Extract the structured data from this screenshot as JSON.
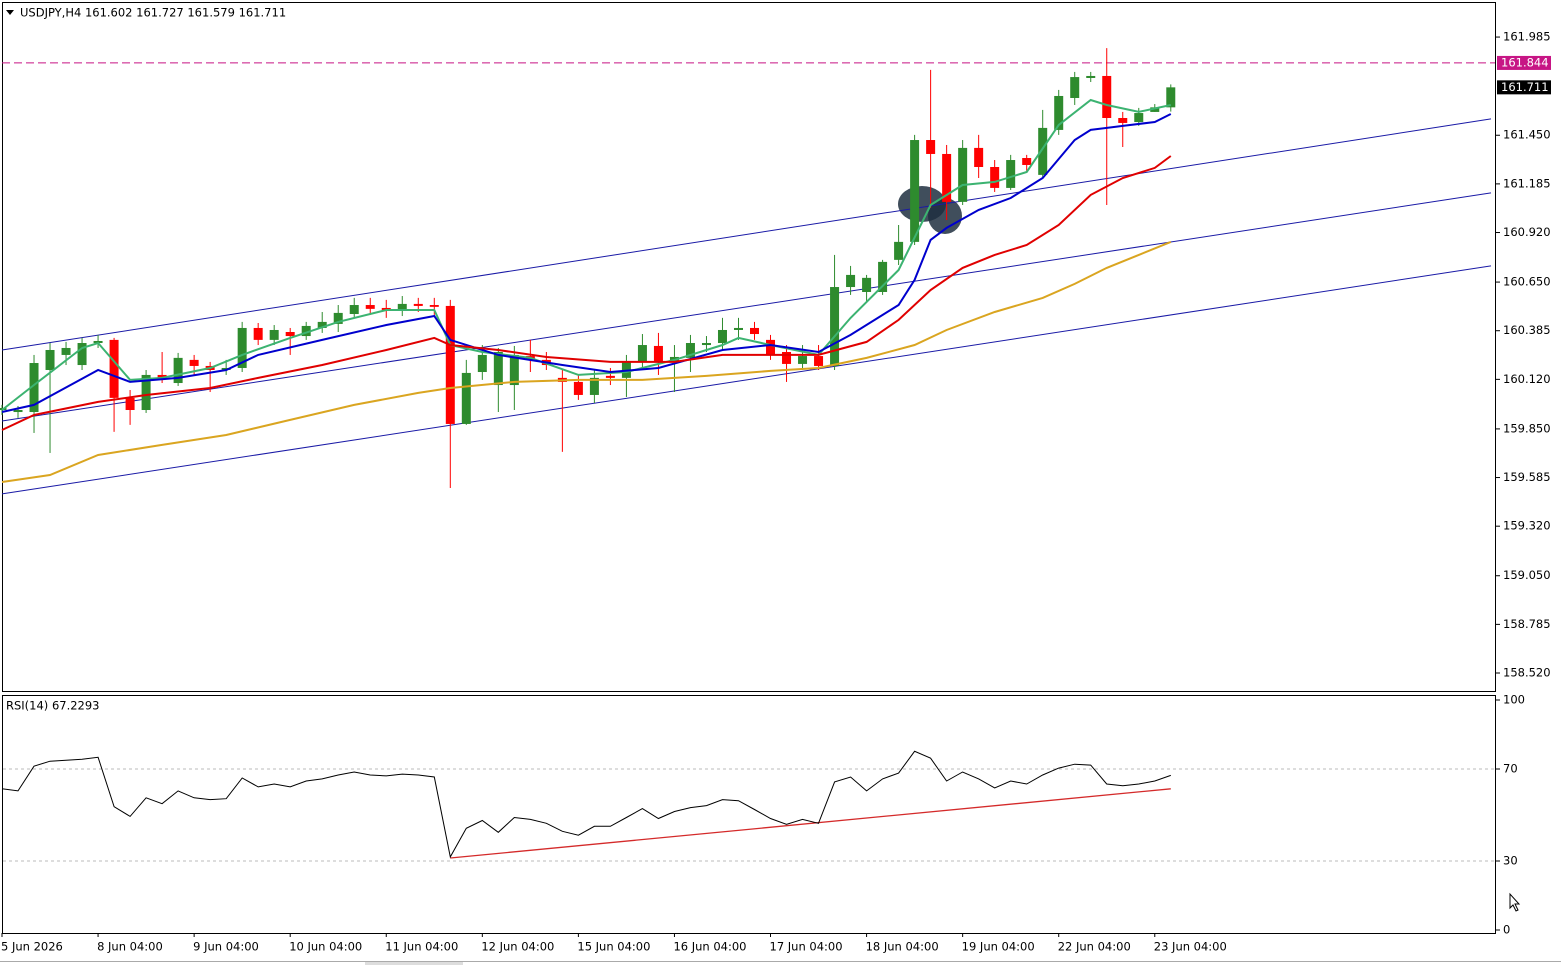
{
  "chart_data": [
    {
      "type": "candlestick",
      "title": "USDJPY,H4  161.602 161.727 161.579 161.711",
      "categories": [
        "5 Jun 2026",
        null,
        null,
        null,
        null,
        null,
        "8 Jun 04:00",
        null,
        null,
        null,
        null,
        null,
        "9 Jun 04:00",
        null,
        null,
        null,
        null,
        null,
        "10 Jun 04:00",
        null,
        null,
        null,
        null,
        null,
        "11 Jun 04:00",
        null,
        null,
        null,
        null,
        null,
        "12 Jun 04:00",
        null,
        null,
        null,
        null,
        null,
        "15 Jun 04:00",
        null,
        null,
        null,
        null,
        null,
        "16 Jun 04:00",
        null,
        null,
        null,
        null,
        null,
        "17 Jun 04:00",
        null,
        null,
        null,
        null,
        null,
        "18 Jun 04:00",
        null,
        null,
        null,
        null,
        null,
        "19 Jun 04:00",
        null,
        null,
        null,
        null,
        null,
        "22 Jun 04:00",
        null,
        null,
        null,
        null,
        null,
        "23 Jun 04:00",
        null
      ],
      "open": [
        159.953,
        159.942,
        159.942,
        160.171,
        160.253,
        160.198,
        160.318,
        160.335,
        160.019,
        159.953,
        160.144,
        160.1,
        160.226,
        160.193,
        160.171,
        160.182,
        160.4,
        160.335,
        160.378,
        160.356,
        160.4,
        160.422,
        160.476,
        160.525,
        160.509,
        160.498,
        160.531,
        160.525,
        160.52,
        159.877,
        160.16,
        160.089,
        160.089,
        160.247,
        160.226,
        160.128,
        160.106,
        160.035,
        160.139,
        160.128,
        160.215,
        160.302,
        160.215,
        160.237,
        160.307,
        160.318,
        160.389,
        160.4,
        160.335,
        160.269,
        160.204,
        160.247,
        160.193,
        160.623,
        160.596,
        160.596,
        160.771,
        160.869,
        161.424,
        161.348,
        161.087,
        161.381,
        161.277,
        161.163,
        161.326,
        161.234,
        161.479,
        161.653,
        161.762,
        161.773,
        161.544,
        161.522,
        161.577,
        161.602
      ],
      "high": [
        159.981,
        159.975,
        160.253,
        160.318,
        160.324,
        160.346,
        160.362,
        160.346,
        160.062,
        160.171,
        160.269,
        160.264,
        160.253,
        160.215,
        160.226,
        160.433,
        160.427,
        160.416,
        160.4,
        160.433,
        160.487,
        160.525,
        160.564,
        160.564,
        160.553,
        160.574,
        160.564,
        160.564,
        160.553,
        160.226,
        160.307,
        160.291,
        160.302,
        160.335,
        160.269,
        160.171,
        160.144,
        160.171,
        160.182,
        160.253,
        160.367,
        160.373,
        160.307,
        160.362,
        160.356,
        160.455,
        160.455,
        160.433,
        160.362,
        160.307,
        160.307,
        160.307,
        160.798,
        160.738,
        160.689,
        160.771,
        160.961,
        161.452,
        161.806,
        161.397,
        161.424,
        161.452,
        161.315,
        161.343,
        161.343,
        161.588,
        161.697,
        161.795,
        161.795,
        161.925,
        161.577,
        161.599,
        161.62,
        161.727
      ],
      "low": [
        159.926,
        159.91,
        159.828,
        159.719,
        160.198,
        160.171,
        160.291,
        159.834,
        159.872,
        159.937,
        160.1,
        160.084,
        160.144,
        160.051,
        160.144,
        160.16,
        160.307,
        160.307,
        160.253,
        160.335,
        160.373,
        160.378,
        160.455,
        160.471,
        160.455,
        160.465,
        160.487,
        160.471,
        159.528,
        159.872,
        160.117,
        159.942,
        159.953,
        160.16,
        160.171,
        159.725,
        160.008,
        159.991,
        160.089,
        160.024,
        160.182,
        160.144,
        160.051,
        160.16,
        160.269,
        160.28,
        160.335,
        160.335,
        160.226,
        160.106,
        160.171,
        160.171,
        160.171,
        160.58,
        160.542,
        160.58,
        160.743,
        160.852,
        161.054,
        160.988,
        161.07,
        161.217,
        161.141,
        161.152,
        161.25,
        161.217,
        161.452,
        161.615,
        161.74,
        161.07,
        161.386,
        161.501,
        161.577,
        161.579
      ],
      "close": [
        159.964,
        159.953,
        160.209,
        160.28,
        160.291,
        160.318,
        160.329,
        160.019,
        159.953,
        160.144,
        160.128,
        160.237,
        160.193,
        160.171,
        160.182,
        160.4,
        160.335,
        160.389,
        160.356,
        160.411,
        160.433,
        160.482,
        160.525,
        160.504,
        160.498,
        160.531,
        160.52,
        160.515,
        159.877,
        160.155,
        160.253,
        160.269,
        160.253,
        160.226,
        160.198,
        160.106,
        160.035,
        160.128,
        160.128,
        160.215,
        160.307,
        160.215,
        160.242,
        160.318,
        160.318,
        160.389,
        160.4,
        160.367,
        160.253,
        160.204,
        160.247,
        160.193,
        160.623,
        160.689,
        160.673,
        160.76,
        160.869,
        161.424,
        161.348,
        161.087,
        161.381,
        161.277,
        161.163,
        161.315,
        161.288,
        161.49,
        161.664,
        161.767,
        161.773,
        161.544,
        161.517,
        161.571,
        161.602,
        161.711
      ],
      "up_color": "#2e8b2e",
      "down_color": "#ff0000",
      "xlim": [
        -0.125,
        93.25
      ],
      "ylim": [
        158.422,
        162.176
      ],
      "yticks": [
        161.985,
        {
          "value": 161.45,
          "label": "161.450"
        },
        161.185,
        {
          "value": 160.92,
          "label": "160.920"
        },
        {
          "value": 160.65,
          "label": "160.650"
        },
        160.385,
        {
          "value": 160.12,
          "label": "160.120"
        },
        {
          "value": 159.85,
          "label": "159.850"
        },
        159.585,
        {
          "value": 159.32,
          "label": "159.320"
        },
        {
          "value": 159.05,
          "label": "159.050"
        },
        158.785,
        {
          "value": 158.52,
          "label": "158.520"
        }
      ],
      "grid": false,
      "moving_averages": [
        {
          "color": "#3cb371",
          "x": [
            0,
            2,
            5,
            6,
            8,
            10,
            13,
            15,
            18,
            21,
            24,
            27,
            28,
            30,
            33,
            36,
            39,
            42,
            45,
            46,
            48,
            51,
            53,
            56,
            58,
            60,
            62,
            64,
            66,
            68,
            69,
            71,
            73
          ],
          "values": [
            159.953,
            160.089,
            160.291,
            160.318,
            160.117,
            160.128,
            160.182,
            160.253,
            160.346,
            160.433,
            160.498,
            160.498,
            160.307,
            160.269,
            160.237,
            160.144,
            160.16,
            160.226,
            160.307,
            160.346,
            160.307,
            160.253,
            160.455,
            160.716,
            161.07,
            161.179,
            161.196,
            161.25,
            161.506,
            161.642,
            161.615,
            161.577,
            161.615
          ]
        },
        {
          "color": "#0000cd",
          "x": [
            0,
            2,
            6,
            8,
            11,
            14,
            16,
            20,
            24,
            27,
            28,
            31,
            35,
            38,
            41,
            45,
            48,
            51,
            53,
            56,
            57,
            58,
            59,
            61,
            63,
            65,
            67,
            68,
            70,
            72,
            73
          ],
          "values": [
            159.942,
            159.981,
            160.171,
            160.106,
            160.128,
            160.171,
            160.253,
            160.335,
            160.416,
            160.465,
            160.335,
            160.253,
            160.198,
            160.16,
            160.182,
            160.28,
            160.307,
            160.269,
            160.362,
            160.525,
            160.662,
            160.88,
            160.945,
            161.043,
            161.108,
            161.217,
            161.424,
            161.479,
            161.501,
            161.522,
            161.566
          ]
        },
        {
          "color": "#e00000",
          "x": [
            0,
            2,
            6,
            9,
            13,
            16,
            20,
            24,
            27,
            28,
            31,
            34,
            38,
            42,
            45,
            48,
            51,
            54,
            56,
            58,
            60,
            62,
            64,
            66,
            68,
            70,
            72,
            73
          ],
          "values": [
            159.844,
            159.926,
            159.997,
            160.035,
            160.073,
            160.128,
            160.198,
            160.28,
            160.346,
            160.307,
            160.28,
            160.242,
            160.215,
            160.215,
            160.253,
            160.253,
            160.253,
            160.324,
            160.444,
            160.607,
            160.727,
            160.798,
            160.852,
            160.961,
            161.125,
            161.217,
            161.272,
            161.337
          ]
        },
        {
          "color": "#daa520",
          "x": [
            0,
            3,
            6,
            10,
            14,
            18,
            22,
            26,
            28,
            32,
            36,
            40,
            44,
            48,
            51,
            54,
            57,
            59,
            62,
            65,
            67,
            69,
            71,
            73
          ],
          "values": [
            159.561,
            159.599,
            159.708,
            159.763,
            159.817,
            159.899,
            159.981,
            160.046,
            160.073,
            160.106,
            160.117,
            160.117,
            160.139,
            160.166,
            160.182,
            160.237,
            160.307,
            160.389,
            160.487,
            160.564,
            160.64,
            160.727,
            160.798,
            160.869
          ]
        }
      ],
      "trendlines": [
        {
          "color": "#1a1aa6",
          "x": [
            0,
            93
          ],
          "values": [
            160.28,
            161.539
          ]
        },
        {
          "color": "#1a1aa6",
          "x": [
            0,
            93
          ],
          "values": [
            159.893,
            161.136
          ]
        },
        {
          "color": "#1a1aa6",
          "x": [
            0,
            93
          ],
          "values": [
            159.496,
            160.738
          ]
        }
      ],
      "price_line": {
        "value": 161.844,
        "color": "#c71585"
      },
      "current_price": {
        "value": 161.711,
        "color": "#000000"
      }
    },
    {
      "type": "line",
      "title": "RSI(14) 67.2293",
      "values": [
        61.4,
        60.5,
        71.2,
        73.4,
        73.8,
        74.2,
        75.1,
        53.6,
        49.4,
        57.5,
        54.9,
        60.5,
        57.5,
        56.7,
        57.1,
        66.1,
        62.2,
        63.5,
        62.2,
        64.8,
        65.7,
        67.4,
        68.7,
        67.4,
        67.0,
        67.8,
        67.4,
        66.5,
        31.8,
        44.2,
        47.6,
        42.5,
        48.9,
        48.1,
        46.4,
        42.9,
        41.2,
        45.1,
        45.1,
        48.9,
        52.8,
        48.5,
        51.5,
        53.2,
        54.1,
        56.7,
        56.2,
        52.4,
        48.5,
        45.9,
        48.1,
        46.4,
        64.4,
        66.5,
        60.5,
        65.7,
        68.2,
        77.7,
        74.7,
        64.8,
        68.7,
        65.7,
        61.8,
        64.8,
        63.5,
        67.4,
        70.4,
        72.1,
        71.7,
        63.5,
        62.7,
        63.5,
        64.8,
        67.2293
      ],
      "color": "#000000",
      "ylim": [
        0,
        100
      ],
      "yticks": [
        100,
        70,
        30,
        0
      ],
      "levels": [
        70,
        30
      ],
      "trendline": {
        "color": "#d42a2a",
        "x": [
          28,
          73
        ],
        "values": [
          31.3,
          61.4
        ]
      }
    }
  ]
}
